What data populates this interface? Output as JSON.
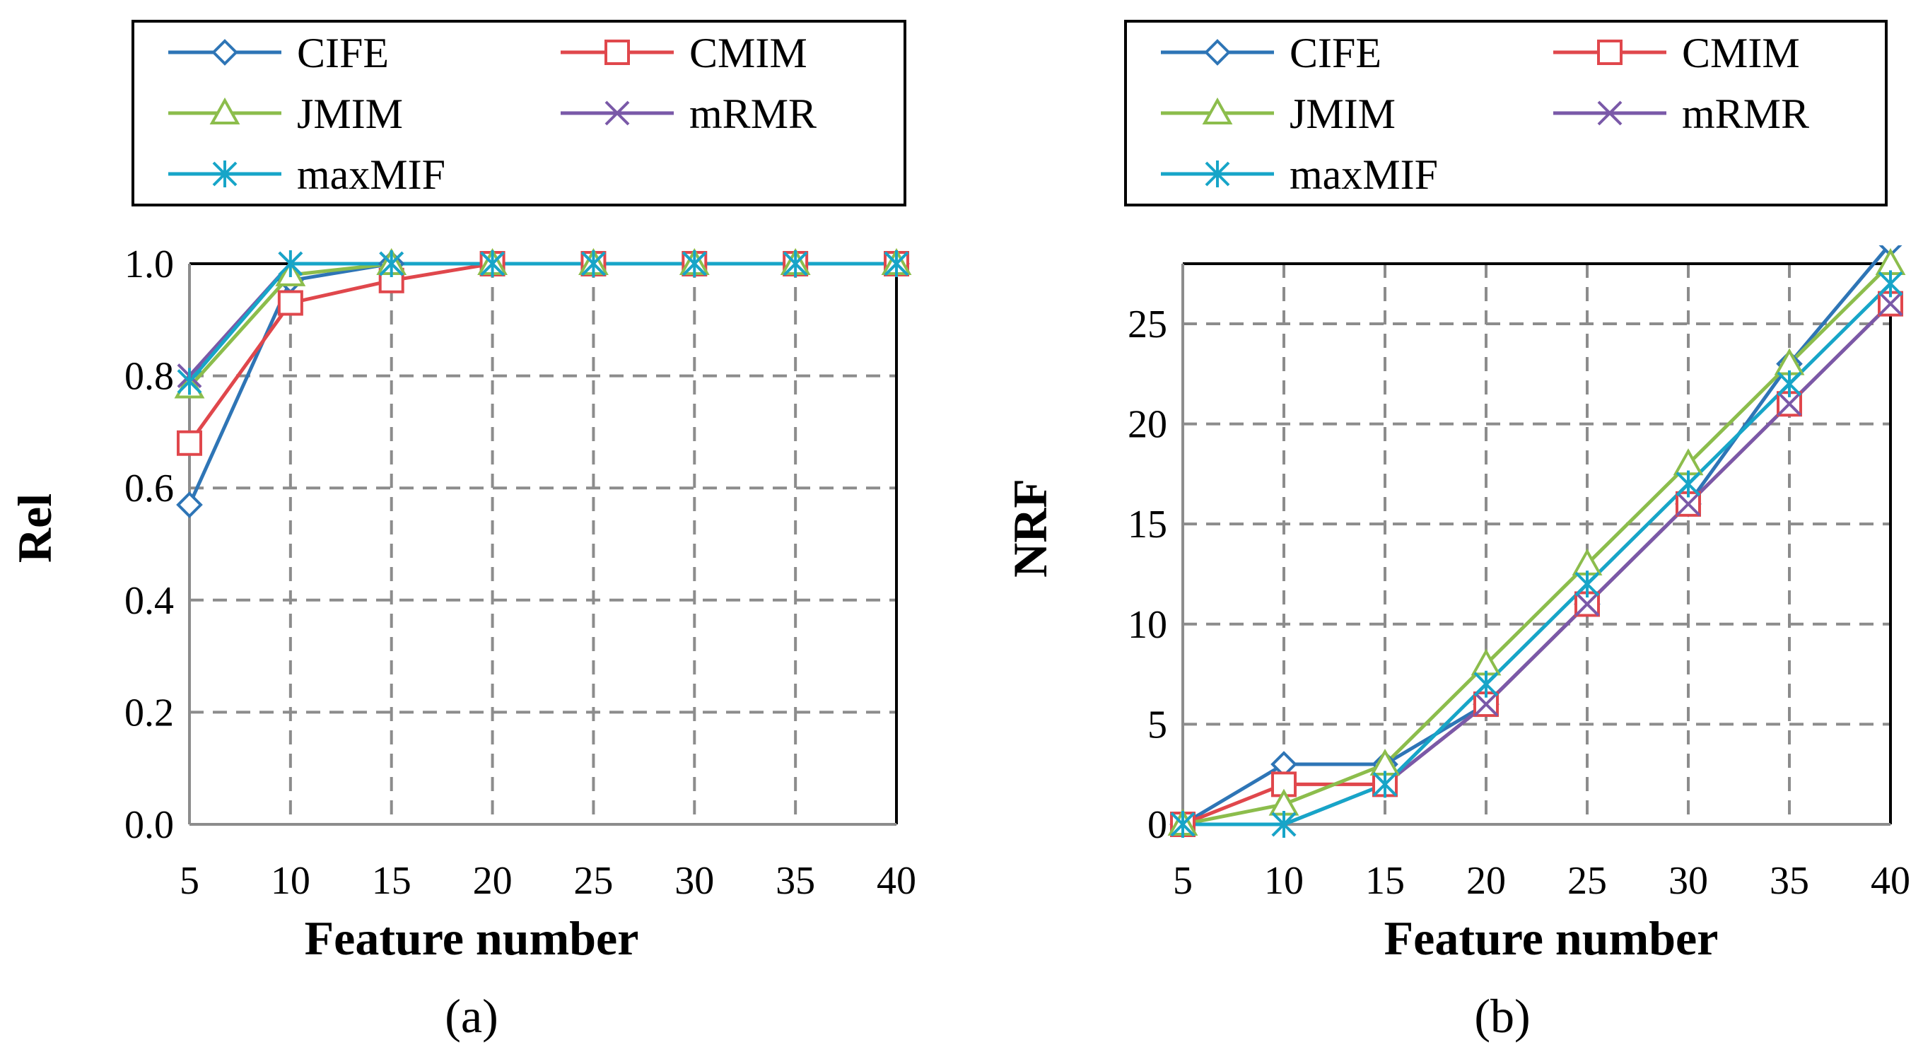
{
  "colors": {
    "CIFE": "#2e75b6",
    "CMIM": "#e0474c",
    "JMIM": "#8cbd4c",
    "mRMR": "#7a59a8",
    "maxMIF": "#17a5c8",
    "grid": "#8c8c8c",
    "frame": "#000000"
  },
  "chart_data": [
    {
      "type": "line",
      "caption": "(a)",
      "xlabel": "Feature number",
      "ylabel": "Rel",
      "x": [
        5,
        10,
        15,
        20,
        25,
        30,
        35,
        40
      ],
      "xticks": [
        "5",
        "10",
        "15",
        "20",
        "25",
        "30",
        "35",
        "40"
      ],
      "yticks": [
        "0.0",
        "0.2",
        "0.4",
        "0.6",
        "0.8",
        "1.0"
      ],
      "ytick_values": [
        0.0,
        0.2,
        0.4,
        0.6,
        0.8,
        1.0
      ],
      "ylim": [
        0,
        1.0
      ],
      "grid": true,
      "legend": {
        "placement": "top",
        "entries": [
          "CIFE",
          "CMIM",
          "JMIM",
          "mRMR",
          "maxMIF"
        ]
      },
      "series": [
        {
          "name": "CIFE",
          "marker": "diamond",
          "values": [
            0.57,
            0.97,
            1.0,
            1.0,
            1.0,
            1.0,
            1.0,
            1.0
          ]
        },
        {
          "name": "CMIM",
          "marker": "square",
          "values": [
            0.68,
            0.93,
            0.97,
            1.0,
            1.0,
            1.0,
            1.0,
            1.0
          ]
        },
        {
          "name": "JMIM",
          "marker": "triangle",
          "values": [
            0.78,
            0.98,
            1.0,
            1.0,
            1.0,
            1.0,
            1.0,
            1.0
          ]
        },
        {
          "name": "mRMR",
          "marker": "x",
          "values": [
            0.8,
            1.0,
            1.0,
            1.0,
            1.0,
            1.0,
            1.0,
            1.0
          ]
        },
        {
          "name": "maxMIF",
          "marker": "asterisk",
          "values": [
            0.79,
            1.0,
            1.0,
            1.0,
            1.0,
            1.0,
            1.0,
            1.0
          ]
        }
      ]
    },
    {
      "type": "line",
      "caption": "(b)",
      "xlabel": "Feature number",
      "ylabel": "NRF",
      "x": [
        5,
        10,
        15,
        20,
        25,
        30,
        35,
        40
      ],
      "xticks": [
        "5",
        "10",
        "15",
        "20",
        "25",
        "30",
        "35",
        "40"
      ],
      "yticks": [
        "0",
        "5",
        "10",
        "15",
        "20",
        "25"
      ],
      "ytick_values": [
        0,
        5,
        10,
        15,
        20,
        25
      ],
      "ylim": [
        0,
        28
      ],
      "grid": true,
      "legend": {
        "placement": "top",
        "entries": [
          "CIFE",
          "CMIM",
          "JMIM",
          "mRMR",
          "maxMIF"
        ]
      },
      "series": [
        {
          "name": "CIFE",
          "marker": "diamond",
          "values": [
            0,
            3,
            3,
            6,
            11,
            16,
            23,
            29
          ]
        },
        {
          "name": "CMIM",
          "marker": "square",
          "values": [
            0,
            2,
            2,
            6,
            11,
            16,
            21,
            26
          ]
        },
        {
          "name": "JMIM",
          "marker": "triangle",
          "values": [
            0,
            1,
            3,
            8,
            13,
            18,
            23,
            28
          ]
        },
        {
          "name": "mRMR",
          "marker": "x",
          "values": [
            0,
            0,
            2,
            6,
            11,
            16,
            21,
            26
          ]
        },
        {
          "name": "maxMIF",
          "marker": "asterisk",
          "values": [
            0,
            0,
            2,
            7,
            12,
            17,
            22,
            27
          ]
        }
      ]
    }
  ]
}
